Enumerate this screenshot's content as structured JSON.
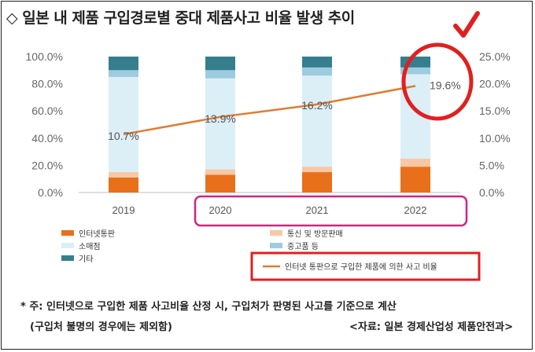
{
  "title": "◇ 일본 내 제품 구입경로별 중대 제품사고 비율 발생 추이",
  "footnote": {
    "line1": "* 주: 인터넷으로 구입한 제품 사고비율 산정 시, 구입처가 판명된 사고를 기준으로 계산",
    "line2_left": "(구입처 불명의 경우에는 제외함)",
    "line2_right": "<자료: 일본 경제산업성 제품안전과>"
  },
  "colors": {
    "internet": "#E8701A",
    "telecom": "#F8C8A6",
    "retail": "#DCEFF7",
    "used": "#9DCBE0",
    "other": "#357E8E",
    "line": "#E07B32",
    "highlight_pink": "#D0247F",
    "highlight_red": "#E02020"
  },
  "chart_data": {
    "type": "bar",
    "categories": [
      "2019",
      "2020",
      "2021",
      "2022"
    ],
    "stacked": true,
    "y_left": {
      "ticks": [
        "0.0%",
        "20.0%",
        "40.0%",
        "60.0%",
        "80.0%",
        "100.0%"
      ],
      "range": [
        0,
        100
      ]
    },
    "y_right": {
      "ticks": [
        "0.0%",
        "5.0%",
        "10.0%",
        "15.0%",
        "20.0%",
        "25.0%"
      ],
      "range": [
        0,
        25
      ]
    },
    "series": [
      {
        "name": "인터넷통판",
        "key": "internet",
        "values": [
          11,
          13,
          15,
          19
        ]
      },
      {
        "name": "통신 및 방문판매",
        "key": "telecom",
        "values": [
          4,
          4,
          4,
          6
        ]
      },
      {
        "name": "소매점",
        "key": "retail",
        "values": [
          70,
          67,
          67,
          62
        ]
      },
      {
        "name": "중고품 등",
        "key": "used",
        "values": [
          5,
          6,
          6,
          5
        ]
      },
      {
        "name": "기타",
        "key": "other",
        "values": [
          10,
          10,
          8,
          8
        ]
      }
    ],
    "line_series": {
      "name": "인터넷 통판으로 구입한 제품에 의한 사고 비율",
      "axis": "right",
      "values": [
        10.7,
        13.9,
        16.2,
        19.6
      ],
      "labels": [
        "10.7%",
        "13.9%",
        "16.2%",
        "19.6%"
      ]
    },
    "legend": {
      "placement": "bottom"
    },
    "grid": false
  }
}
